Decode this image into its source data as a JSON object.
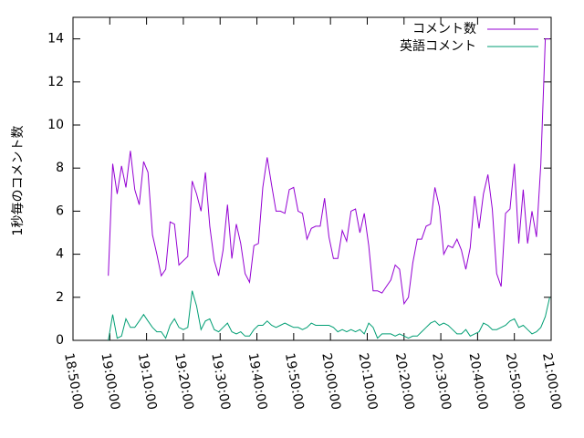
{
  "chart_data": {
    "type": "line",
    "y_label": "1秒毎のコメント数",
    "x": [
      "18:59:36",
      "19:00:48",
      "19:02:00",
      "19:03:12",
      "19:04:24",
      "19:05:36",
      "19:06:48",
      "19:08:00",
      "19:09:12",
      "19:10:24",
      "19:11:36",
      "19:12:48",
      "19:14:00",
      "19:15:12",
      "19:16:24",
      "19:17:36",
      "19:18:48",
      "19:20:00",
      "19:21:12",
      "19:22:24",
      "19:23:36",
      "19:24:48",
      "19:26:00",
      "19:27:12",
      "19:28:24",
      "19:29:36",
      "19:30:48",
      "19:32:00",
      "19:33:12",
      "19:34:24",
      "19:35:36",
      "19:36:48",
      "19:38:00",
      "19:39:12",
      "19:40:24",
      "19:41:36",
      "19:42:48",
      "19:44:00",
      "19:45:12",
      "19:46:24",
      "19:47:36",
      "19:48:48",
      "19:50:00",
      "19:51:12",
      "19:52:24",
      "19:53:36",
      "19:54:48",
      "19:56:00",
      "19:57:12",
      "19:58:24",
      "19:59:36",
      "20:00:48",
      "20:02:00",
      "20:03:12",
      "20:04:24",
      "20:05:36",
      "20:06:48",
      "20:08:00",
      "20:09:12",
      "20:10:24",
      "20:11:36",
      "20:12:48",
      "20:14:00",
      "20:15:12",
      "20:16:24",
      "20:17:36",
      "20:18:48",
      "20:20:00",
      "20:21:12",
      "20:22:24",
      "20:23:36",
      "20:24:48",
      "20:26:00",
      "20:27:12",
      "20:28:24",
      "20:29:36",
      "20:30:48",
      "20:32:00",
      "20:33:12",
      "20:34:24",
      "20:35:36",
      "20:36:48",
      "20:38:00",
      "20:39:12",
      "20:40:24",
      "20:41:36",
      "20:42:48",
      "20:44:00",
      "20:45:12",
      "20:46:24",
      "20:47:36",
      "20:48:48",
      "20:50:00",
      "20:51:12",
      "20:52:24",
      "20:53:36",
      "20:54:48",
      "20:56:00",
      "20:57:12",
      "20:58:24",
      "20:59:36"
    ],
    "series": [
      {
        "name": "コメント数",
        "color": "#9400d3",
        "values": [
          3,
          8.2,
          6.8,
          8.1,
          7.1,
          8.8,
          7,
          6.3,
          8.3,
          7.8,
          4.9,
          4,
          3,
          3.3,
          5.5,
          5.4,
          3.5,
          3.7,
          3.9,
          7.4,
          6.8,
          6,
          7.8,
          5.3,
          3.7,
          3,
          4.2,
          6.3,
          3.8,
          5.4,
          4.5,
          3.1,
          2.7,
          4.4,
          4.5,
          7.1,
          8.5,
          7.2,
          6,
          6,
          5.9,
          7,
          7.1,
          6,
          5.9,
          4.7,
          5.2,
          5.3,
          5.3,
          6.6,
          4.8,
          3.8,
          3.8,
          5.1,
          4.6,
          6,
          6.1,
          5,
          5.9,
          4.4,
          2.3,
          2.3,
          2.2,
          2.5,
          2.8,
          3.5,
          3.3,
          1.7,
          2,
          3.6,
          4.7,
          4.7,
          5.3,
          5.4,
          7.1,
          6.2,
          4,
          4.4,
          4.3,
          4.7,
          4.2,
          3.3,
          4.3,
          6.7,
          5.2,
          6.8,
          7.7,
          6.1,
          3.1,
          2.5,
          5.9,
          6.1,
          8.2,
          4.5,
          7,
          4.5,
          6,
          4.8,
          8.2,
          14,
          14
        ]
      },
      {
        "name": "英語コメント",
        "color": "#009e73",
        "values": [
          0,
          1.2,
          0.1,
          0.2,
          1.0,
          0.6,
          0.6,
          0.9,
          1.2,
          0.9,
          0.6,
          0.4,
          0.4,
          0.1,
          0.7,
          1.0,
          0.6,
          0.5,
          0.6,
          2.3,
          1.6,
          0.5,
          0.9,
          1.0,
          0.5,
          0.4,
          0.6,
          0.8,
          0.4,
          0.3,
          0.4,
          0.2,
          0.2,
          0.5,
          0.7,
          0.7,
          0.9,
          0.7,
          0.6,
          0.7,
          0.8,
          0.7,
          0.6,
          0.6,
          0.5,
          0.6,
          0.8,
          0.7,
          0.7,
          0.7,
          0.7,
          0.6,
          0.4,
          0.5,
          0.4,
          0.5,
          0.4,
          0.5,
          0.3,
          0.8,
          0.6,
          0.1,
          0.3,
          0.3,
          0.3,
          0.2,
          0.3,
          0.2,
          0.1,
          0.2,
          0.2,
          0.4,
          0.6,
          0.8,
          0.9,
          0.7,
          0.8,
          0.7,
          0.5,
          0.3,
          0.3,
          0.5,
          0.2,
          0.3,
          0.4,
          0.8,
          0.7,
          0.5,
          0.5,
          0.6,
          0.7,
          0.9,
          1.0,
          0.6,
          0.7,
          0.5,
          0.3,
          0.4,
          0.6,
          1.1,
          2.0
        ]
      }
    ],
    "xlim": [
      "18:50:00",
      "21:00:00"
    ],
    "xticks": [
      "18:50:00",
      "19:00:00",
      "19:10:00",
      "19:20:00",
      "19:30:00",
      "19:40:00",
      "19:50:00",
      "20:00:00",
      "20:10:00",
      "20:20:00",
      "20:30:00",
      "20:40:00",
      "20:50:00",
      "21:00:00"
    ],
    "ylim": [
      0,
      15
    ],
    "yticks": [
      0,
      2,
      4,
      6,
      8,
      10,
      12,
      14
    ],
    "legend": "top-right"
  }
}
